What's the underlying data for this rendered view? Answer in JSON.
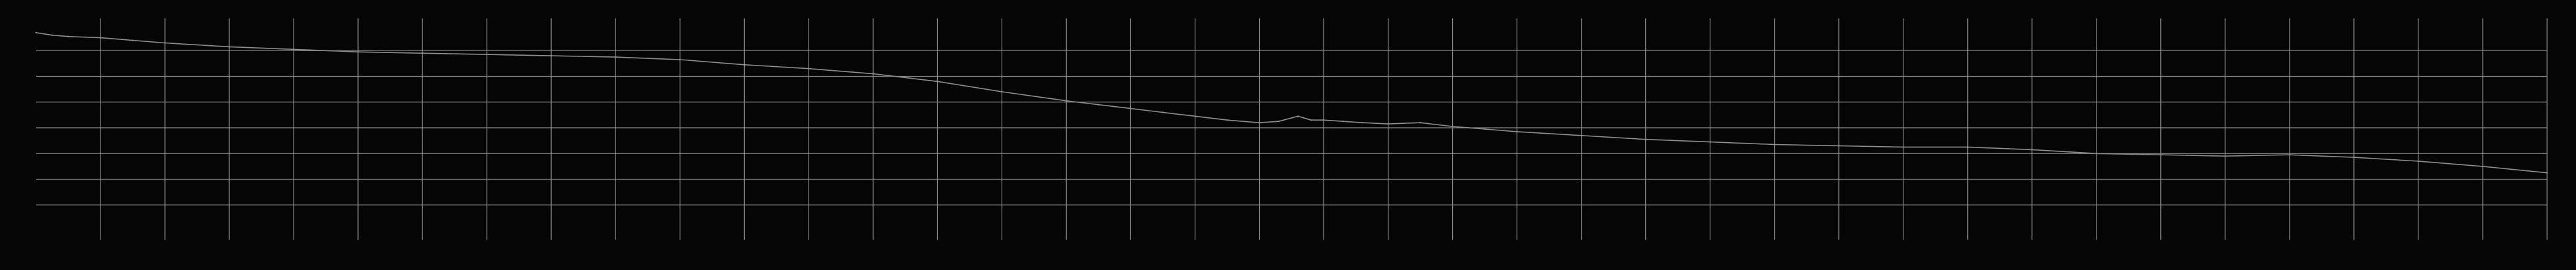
{
  "chart_data": {
    "type": "line",
    "title": "",
    "xlabel": "",
    "ylabel": "",
    "grid": true,
    "legend": "none",
    "xlim": [
      0,
      39
    ],
    "ylim": [
      0,
      8
    ],
    "x_grid_count": 39,
    "y_grid_count": 8,
    "colors": {
      "background": "#050505",
      "grid": "#8a8a8a",
      "line": "#8e8e8e"
    },
    "series": [
      {
        "x": [
          0,
          0.25,
          0.5,
          1,
          1.5,
          2,
          3,
          4,
          5,
          6,
          7,
          8,
          9,
          10,
          11,
          12,
          13,
          14,
          15,
          16,
          16.5,
          17,
          17.5,
          18,
          18.5,
          19,
          19.3,
          19.6,
          19.8,
          20,
          20.3,
          20.6,
          21,
          21.5,
          22,
          22.5,
          23,
          24,
          25,
          26,
          27,
          28,
          29,
          30,
          31,
          32,
          33,
          34,
          35,
          36,
          37,
          38,
          39
        ],
        "values": [
          7.7,
          7.6,
          7.55,
          7.5,
          7.4,
          7.3,
          7.15,
          7.05,
          6.95,
          6.9,
          6.85,
          6.8,
          6.75,
          6.65,
          6.45,
          6.3,
          6.1,
          5.8,
          5.4,
          5.05,
          4.9,
          4.75,
          4.6,
          4.45,
          4.3,
          4.2,
          4.25,
          4.45,
          4.3,
          4.3,
          4.25,
          4.2,
          4.15,
          4.2,
          4.05,
          3.95,
          3.85,
          3.7,
          3.55,
          3.45,
          3.35,
          3.3,
          3.25,
          3.25,
          3.15,
          3.0,
          2.95,
          2.9,
          2.95,
          2.85,
          2.7,
          2.5,
          2.25
        ]
      }
    ]
  }
}
